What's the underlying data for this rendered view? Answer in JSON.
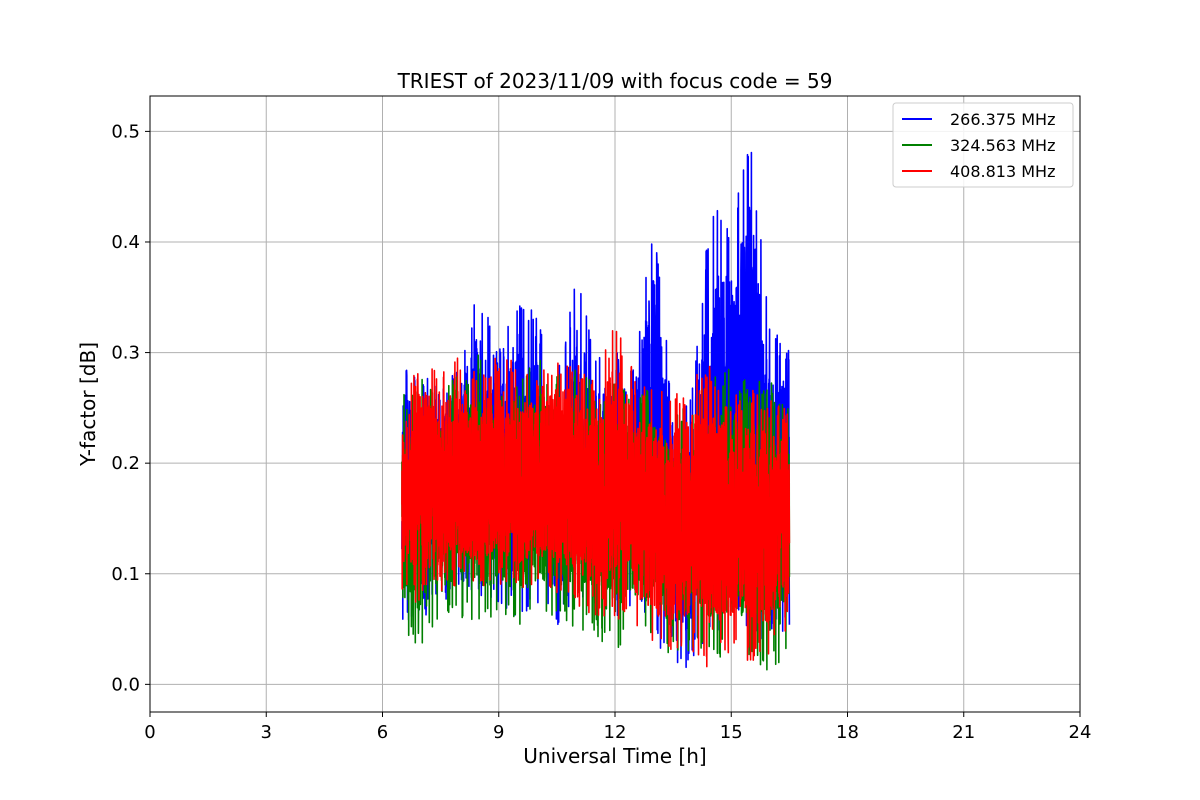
{
  "chart_data": {
    "type": "line",
    "title": "TRIEST of 2023/11/09 with focus code = 59",
    "xlabel": "Universal Time [h]",
    "ylabel": "Y-factor [dB]",
    "xlim": [
      0,
      24
    ],
    "ylim": [
      -0.025,
      0.532
    ],
    "xticks": [
      0,
      3,
      6,
      9,
      12,
      15,
      18,
      21,
      24
    ],
    "xtick_labels": [
      "0",
      "3",
      "6",
      "9",
      "12",
      "15",
      "18",
      "21",
      "24"
    ],
    "yticks": [
      0.0,
      0.1,
      0.2,
      0.3,
      0.4,
      0.5
    ],
    "ytick_labels": [
      "0.0",
      "0.1",
      "0.2",
      "0.3",
      "0.4",
      "0.5"
    ],
    "grid": true,
    "legend_position": "top-right",
    "series": [
      {
        "name": "266.375 MHz",
        "color": "#0000ff",
        "x_range": [
          6.5,
          16.5
        ],
        "envelope": {
          "x": [
            6.5,
            7.0,
            7.5,
            8.0,
            8.5,
            9.0,
            9.5,
            10.0,
            10.5,
            11.0,
            11.5,
            12.0,
            12.5,
            13.0,
            13.5,
            14.0,
            14.5,
            15.0,
            15.5,
            16.0,
            16.5
          ],
          "max": [
            0.3,
            0.28,
            0.27,
            0.3,
            0.36,
            0.3,
            0.36,
            0.33,
            0.28,
            0.37,
            0.3,
            0.3,
            0.3,
            0.43,
            0.25,
            0.28,
            0.44,
            0.42,
            0.5,
            0.32,
            0.31
          ],
          "min": [
            0.05,
            0.06,
            0.07,
            0.09,
            0.08,
            0.07,
            0.06,
            0.07,
            0.05,
            0.07,
            0.08,
            0.06,
            0.07,
            0.05,
            0.0,
            0.02,
            0.04,
            0.06,
            0.04,
            0.04,
            0.05
          ]
        }
      },
      {
        "name": "324.563 MHz",
        "color": "#008000",
        "x_range": [
          6.5,
          16.5
        ],
        "envelope": {
          "x": [
            6.5,
            7.0,
            7.5,
            8.0,
            8.5,
            9.0,
            9.5,
            10.0,
            10.5,
            11.0,
            11.5,
            12.0,
            12.5,
            13.0,
            13.5,
            14.0,
            14.5,
            15.0,
            15.5,
            16.0,
            16.5
          ],
          "max": [
            0.26,
            0.28,
            0.27,
            0.28,
            0.3,
            0.28,
            0.27,
            0.3,
            0.28,
            0.29,
            0.27,
            0.28,
            0.26,
            0.27,
            0.24,
            0.26,
            0.28,
            0.29,
            0.27,
            0.28,
            0.25
          ],
          "min": [
            0.04,
            0.03,
            0.05,
            0.06,
            0.05,
            0.06,
            0.05,
            0.06,
            0.06,
            0.05,
            0.04,
            0.03,
            0.05,
            0.04,
            0.02,
            0.03,
            0.02,
            0.03,
            0.02,
            0.01,
            0.02
          ]
        }
      },
      {
        "name": "408.813 MHz",
        "color": "#ff0000",
        "x_range": [
          6.5,
          16.5
        ],
        "envelope": {
          "x": [
            6.5,
            7.0,
            7.5,
            8.0,
            8.5,
            9.0,
            9.5,
            10.0,
            10.5,
            11.0,
            11.5,
            12.0,
            12.5,
            13.0,
            13.5,
            14.0,
            14.5,
            15.0,
            15.5,
            16.0,
            16.5
          ],
          "max": [
            0.26,
            0.3,
            0.28,
            0.3,
            0.28,
            0.3,
            0.29,
            0.28,
            0.3,
            0.3,
            0.28,
            0.33,
            0.28,
            0.27,
            0.26,
            0.28,
            0.29,
            0.26,
            0.27,
            0.26,
            0.25
          ],
          "min": [
            0.08,
            0.07,
            0.08,
            0.09,
            0.08,
            0.09,
            0.08,
            0.09,
            0.08,
            0.07,
            0.06,
            0.06,
            0.05,
            0.03,
            0.02,
            0.03,
            0.01,
            0.03,
            0.02,
            0.02,
            0.05
          ]
        }
      }
    ]
  }
}
